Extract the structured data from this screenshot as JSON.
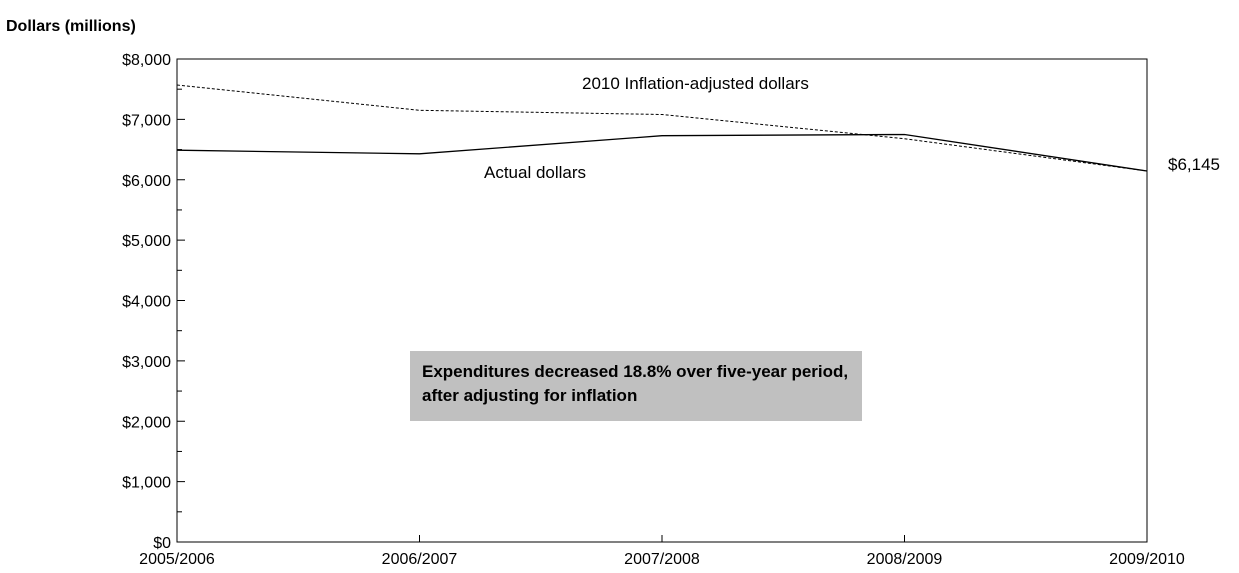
{
  "chart_data": {
    "type": "line",
    "ylabel": "Dollars (millions)",
    "categories": [
      "2005/2006",
      "2006/2007",
      "2007/2008",
      "2008/2009",
      "2009/2010"
    ],
    "series": [
      {
        "name": "2010 Inflation-adjusted dollars",
        "style": "dashed",
        "values": [
          7570,
          7150,
          7080,
          6680,
          6145
        ]
      },
      {
        "name": "Actual dollars",
        "style": "solid",
        "values": [
          6490,
          6430,
          6730,
          6750,
          6145
        ]
      }
    ],
    "ylim": [
      0,
      8000
    ],
    "yticks": [
      0,
      1000,
      2000,
      3000,
      4000,
      5000,
      6000,
      7000,
      8000
    ],
    "ytick_labels": [
      "$0",
      "$1,000",
      "$2,000",
      "$3,000",
      "$4,000",
      "$5,000",
      "$6,000",
      "$7,000",
      "$8,000"
    ],
    "end_label": "$6,145",
    "annotation": "Expenditures decreased 18.8% over five-year period, after adjusting for inflation",
    "grid": false,
    "legend": "inline labels"
  }
}
